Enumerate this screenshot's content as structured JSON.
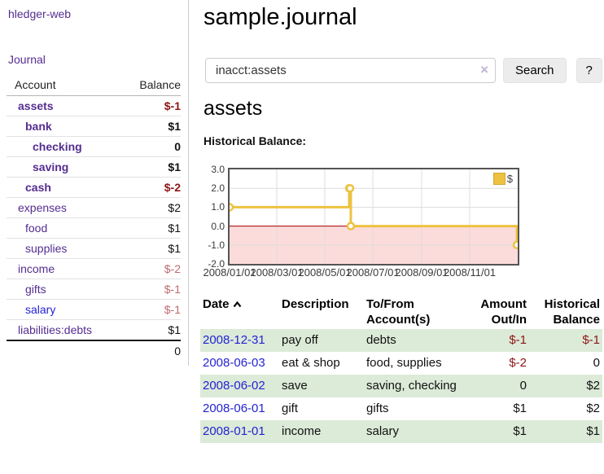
{
  "app": {
    "title": "hledger-web",
    "nav_journal": "Journal"
  },
  "sidebar": {
    "header": {
      "account": "Account",
      "balance": "Balance"
    },
    "accounts": [
      {
        "name": "assets",
        "level": 0,
        "bold": true,
        "balance": "$-1",
        "balance_style": "neg-strong",
        "link_color": "purple"
      },
      {
        "name": "bank",
        "level": 1,
        "bold": true,
        "balance": "$1",
        "balance_style": "pos",
        "link_color": "purple"
      },
      {
        "name": "checking",
        "level": 2,
        "bold": true,
        "balance": "0",
        "balance_style": "pos",
        "link_color": "purple"
      },
      {
        "name": "saving",
        "level": 2,
        "bold": true,
        "balance": "$1",
        "balance_style": "pos",
        "link_color": "purple"
      },
      {
        "name": "cash",
        "level": 1,
        "bold": true,
        "balance": "$-2",
        "balance_style": "neg-strong",
        "link_color": "purple"
      },
      {
        "name": "expenses",
        "level": 0,
        "bold": false,
        "balance": "$2",
        "balance_style": "pos",
        "link_color": "purple"
      },
      {
        "name": "food",
        "level": 1,
        "bold": false,
        "balance": "$1",
        "balance_style": "pos",
        "link_color": "purple"
      },
      {
        "name": "supplies",
        "level": 1,
        "bold": false,
        "balance": "$1",
        "balance_style": "pos",
        "link_color": "purple"
      },
      {
        "name": "income",
        "level": 0,
        "bold": false,
        "balance": "$-2",
        "balance_style": "neg-soft",
        "link_color": "purple"
      },
      {
        "name": "gifts",
        "level": 1,
        "bold": false,
        "balance": "$-1",
        "balance_style": "neg-soft",
        "link_color": "purple"
      },
      {
        "name": "salary",
        "level": 1,
        "bold": false,
        "balance": "$-1",
        "balance_style": "neg-soft",
        "link_color": "blue"
      },
      {
        "name": "liabilities:debts",
        "level": 0,
        "bold": false,
        "balance": "$1",
        "balance_style": "pos",
        "link_color": "purple"
      }
    ],
    "total": "0"
  },
  "header": {
    "title": "sample.journal"
  },
  "search": {
    "value": "inacct:assets",
    "clear_icon": "×",
    "button_label": "Search",
    "help_label": "?"
  },
  "account_page": {
    "heading": "assets",
    "chart_label": "Historical Balance:"
  },
  "chart_data": {
    "type": "line",
    "title": "Historical Balance",
    "step": true,
    "legend": "$",
    "legend_position": "top-right",
    "grid": true,
    "ylim": [
      -2,
      3
    ],
    "y_ticks": [
      "3.0",
      "2.0",
      "1.0",
      "0.0",
      "-1.0",
      "-2.0"
    ],
    "y_tick_values": [
      3,
      2,
      1,
      0,
      -1,
      -2
    ],
    "x_range": [
      "2008-01-01",
      "2009-01-01"
    ],
    "x_ticks": [
      {
        "date": "2008-01-01",
        "label": "2008/01/01"
      },
      {
        "date": "2008-03-01",
        "label": "2008/03/01"
      },
      {
        "date": "2008-05-01",
        "label": "2008/05/01"
      },
      {
        "date": "2008-07-01",
        "label": "2008/07/01"
      },
      {
        "date": "2008-09-01",
        "label": "2008/09/01"
      },
      {
        "date": "2008-11-01",
        "label": "2008/11/01"
      }
    ],
    "series": [
      {
        "name": "$",
        "color": "#EDC240",
        "points": [
          {
            "date": "2008-01-01",
            "value": 1
          },
          {
            "date": "2008-06-01",
            "value": 2
          },
          {
            "date": "2008-06-02",
            "value": 2
          },
          {
            "date": "2008-06-03",
            "value": 0
          },
          {
            "date": "2008-12-31",
            "value": -1
          }
        ]
      }
    ],
    "negative_region_fill": "#fcdbdb",
    "zero_line_color": "#aa0000",
    "gridline_color": "#dddddd",
    "border_color": "#545454"
  },
  "register": {
    "columns": {
      "date": "Date",
      "description": "Description",
      "accounts": "To/From\nAccount(s)",
      "amount": "Amount\nOut/In",
      "balance": "Historical\nBalance"
    },
    "sort_icon": "chevron-up",
    "rows": [
      {
        "date": "2008-12-31",
        "description": "pay off",
        "accounts": "debts",
        "amount": "$-1",
        "amount_neg": true,
        "balance": "$-1",
        "balance_neg": true
      },
      {
        "date": "2008-06-03",
        "description": "eat & shop",
        "accounts": "food, supplies",
        "amount": "$-2",
        "amount_neg": true,
        "balance": "0",
        "balance_neg": false
      },
      {
        "date": "2008-06-02",
        "description": "save",
        "accounts": "saving, checking",
        "amount": "0",
        "amount_neg": false,
        "balance": "$2",
        "balance_neg": false
      },
      {
        "date": "2008-06-01",
        "description": "gift",
        "accounts": "gifts",
        "amount": "$1",
        "amount_neg": false,
        "balance": "$2",
        "balance_neg": false
      },
      {
        "date": "2008-01-01",
        "description": "income",
        "accounts": "salary",
        "amount": "$1",
        "amount_neg": false,
        "balance": "$1",
        "balance_neg": false
      }
    ]
  },
  "colors": {
    "link_purple": "#552d90",
    "link_blue": "#2323d3",
    "negative_strong": "#8e1414",
    "negative_soft": "#c16a6e",
    "row_stripe_green": "#dcead8",
    "chart_line_gold": "#EDC240"
  }
}
